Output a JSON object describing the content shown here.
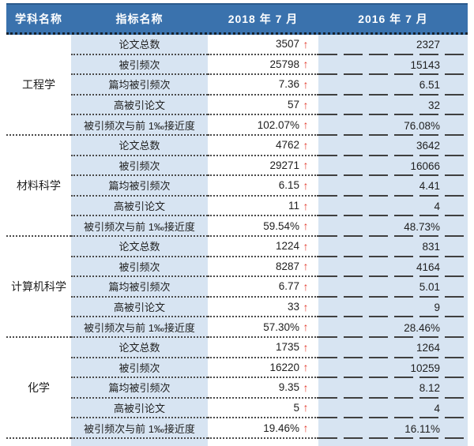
{
  "chart_data": {
    "type": "table",
    "title": "",
    "up_arrow": "↑",
    "columns": [
      "学科名称",
      "指标名称",
      "2018 年 7 月",
      "2016 年 7 月"
    ],
    "indicator_labels": [
      "论文总数",
      "被引频次",
      "篇均被引频次",
      "高被引论文",
      "被引频次与前 1‰接近度"
    ],
    "groups": [
      {
        "subject": "工程学",
        "rows": [
          {
            "indicator": "论文总数",
            "y2018": "3507",
            "y2016": "2327"
          },
          {
            "indicator": "被引频次",
            "y2018": "25798",
            "y2016": "15143"
          },
          {
            "indicator": "篇均被引频次",
            "y2018": "7.36",
            "y2016": "6.51"
          },
          {
            "indicator": "高被引论文",
            "y2018": "57",
            "y2016": "32"
          },
          {
            "indicator": "被引频次与前 1‰接近度",
            "y2018": "102.07%",
            "y2016": "76.08%"
          }
        ]
      },
      {
        "subject": "材料科学",
        "rows": [
          {
            "indicator": "论文总数",
            "y2018": "4762",
            "y2016": "3642"
          },
          {
            "indicator": "被引频次",
            "y2018": "29271",
            "y2016": "16066"
          },
          {
            "indicator": "篇均被引频次",
            "y2018": "6.15",
            "y2016": "4.41"
          },
          {
            "indicator": "高被引论文",
            "y2018": "11",
            "y2016": "4"
          },
          {
            "indicator": "被引频次与前 1‰接近度",
            "y2018": "59.54%",
            "y2016": "48.73%"
          }
        ]
      },
      {
        "subject": "计算机科学",
        "rows": [
          {
            "indicator": "论文总数",
            "y2018": "1224",
            "y2016": "831"
          },
          {
            "indicator": "被引频次",
            "y2018": "8287",
            "y2016": "4164"
          },
          {
            "indicator": "篇均被引频次",
            "y2018": "6.77",
            "y2016": "5.01"
          },
          {
            "indicator": "高被引论文",
            "y2018": "33",
            "y2016": "9"
          },
          {
            "indicator": "被引频次与前 1‰接近度",
            "y2018": "57.30%",
            "y2016": "28.46%"
          }
        ]
      },
      {
        "subject": "化学",
        "rows": [
          {
            "indicator": "论文总数",
            "y2018": "1735",
            "y2016": "1264"
          },
          {
            "indicator": "被引频次",
            "y2018": "16220",
            "y2016": "10259"
          },
          {
            "indicator": "篇均被引频次",
            "y2018": "9.35",
            "y2016": "8.12"
          },
          {
            "indicator": "高被引论文",
            "y2018": "5",
            "y2016": "4"
          },
          {
            "indicator": "被引频次与前 1‰接近度",
            "y2018": "19.46%",
            "y2016": "16.11%"
          }
        ]
      }
    ],
    "colors": {
      "header_bg": "#3A72AD",
      "header_text": "#FFFFFF",
      "band_blue": "#D7E4F2",
      "arrow_red": "#E23B2E",
      "body_text": "#1F1F1F"
    },
    "layout_hints": "All 2018 values carry a red up arrow indicating increase vs 2016; indicator and 2016 columns have light-blue banding; rows separated by dotted lines (dashed in last column)."
  }
}
